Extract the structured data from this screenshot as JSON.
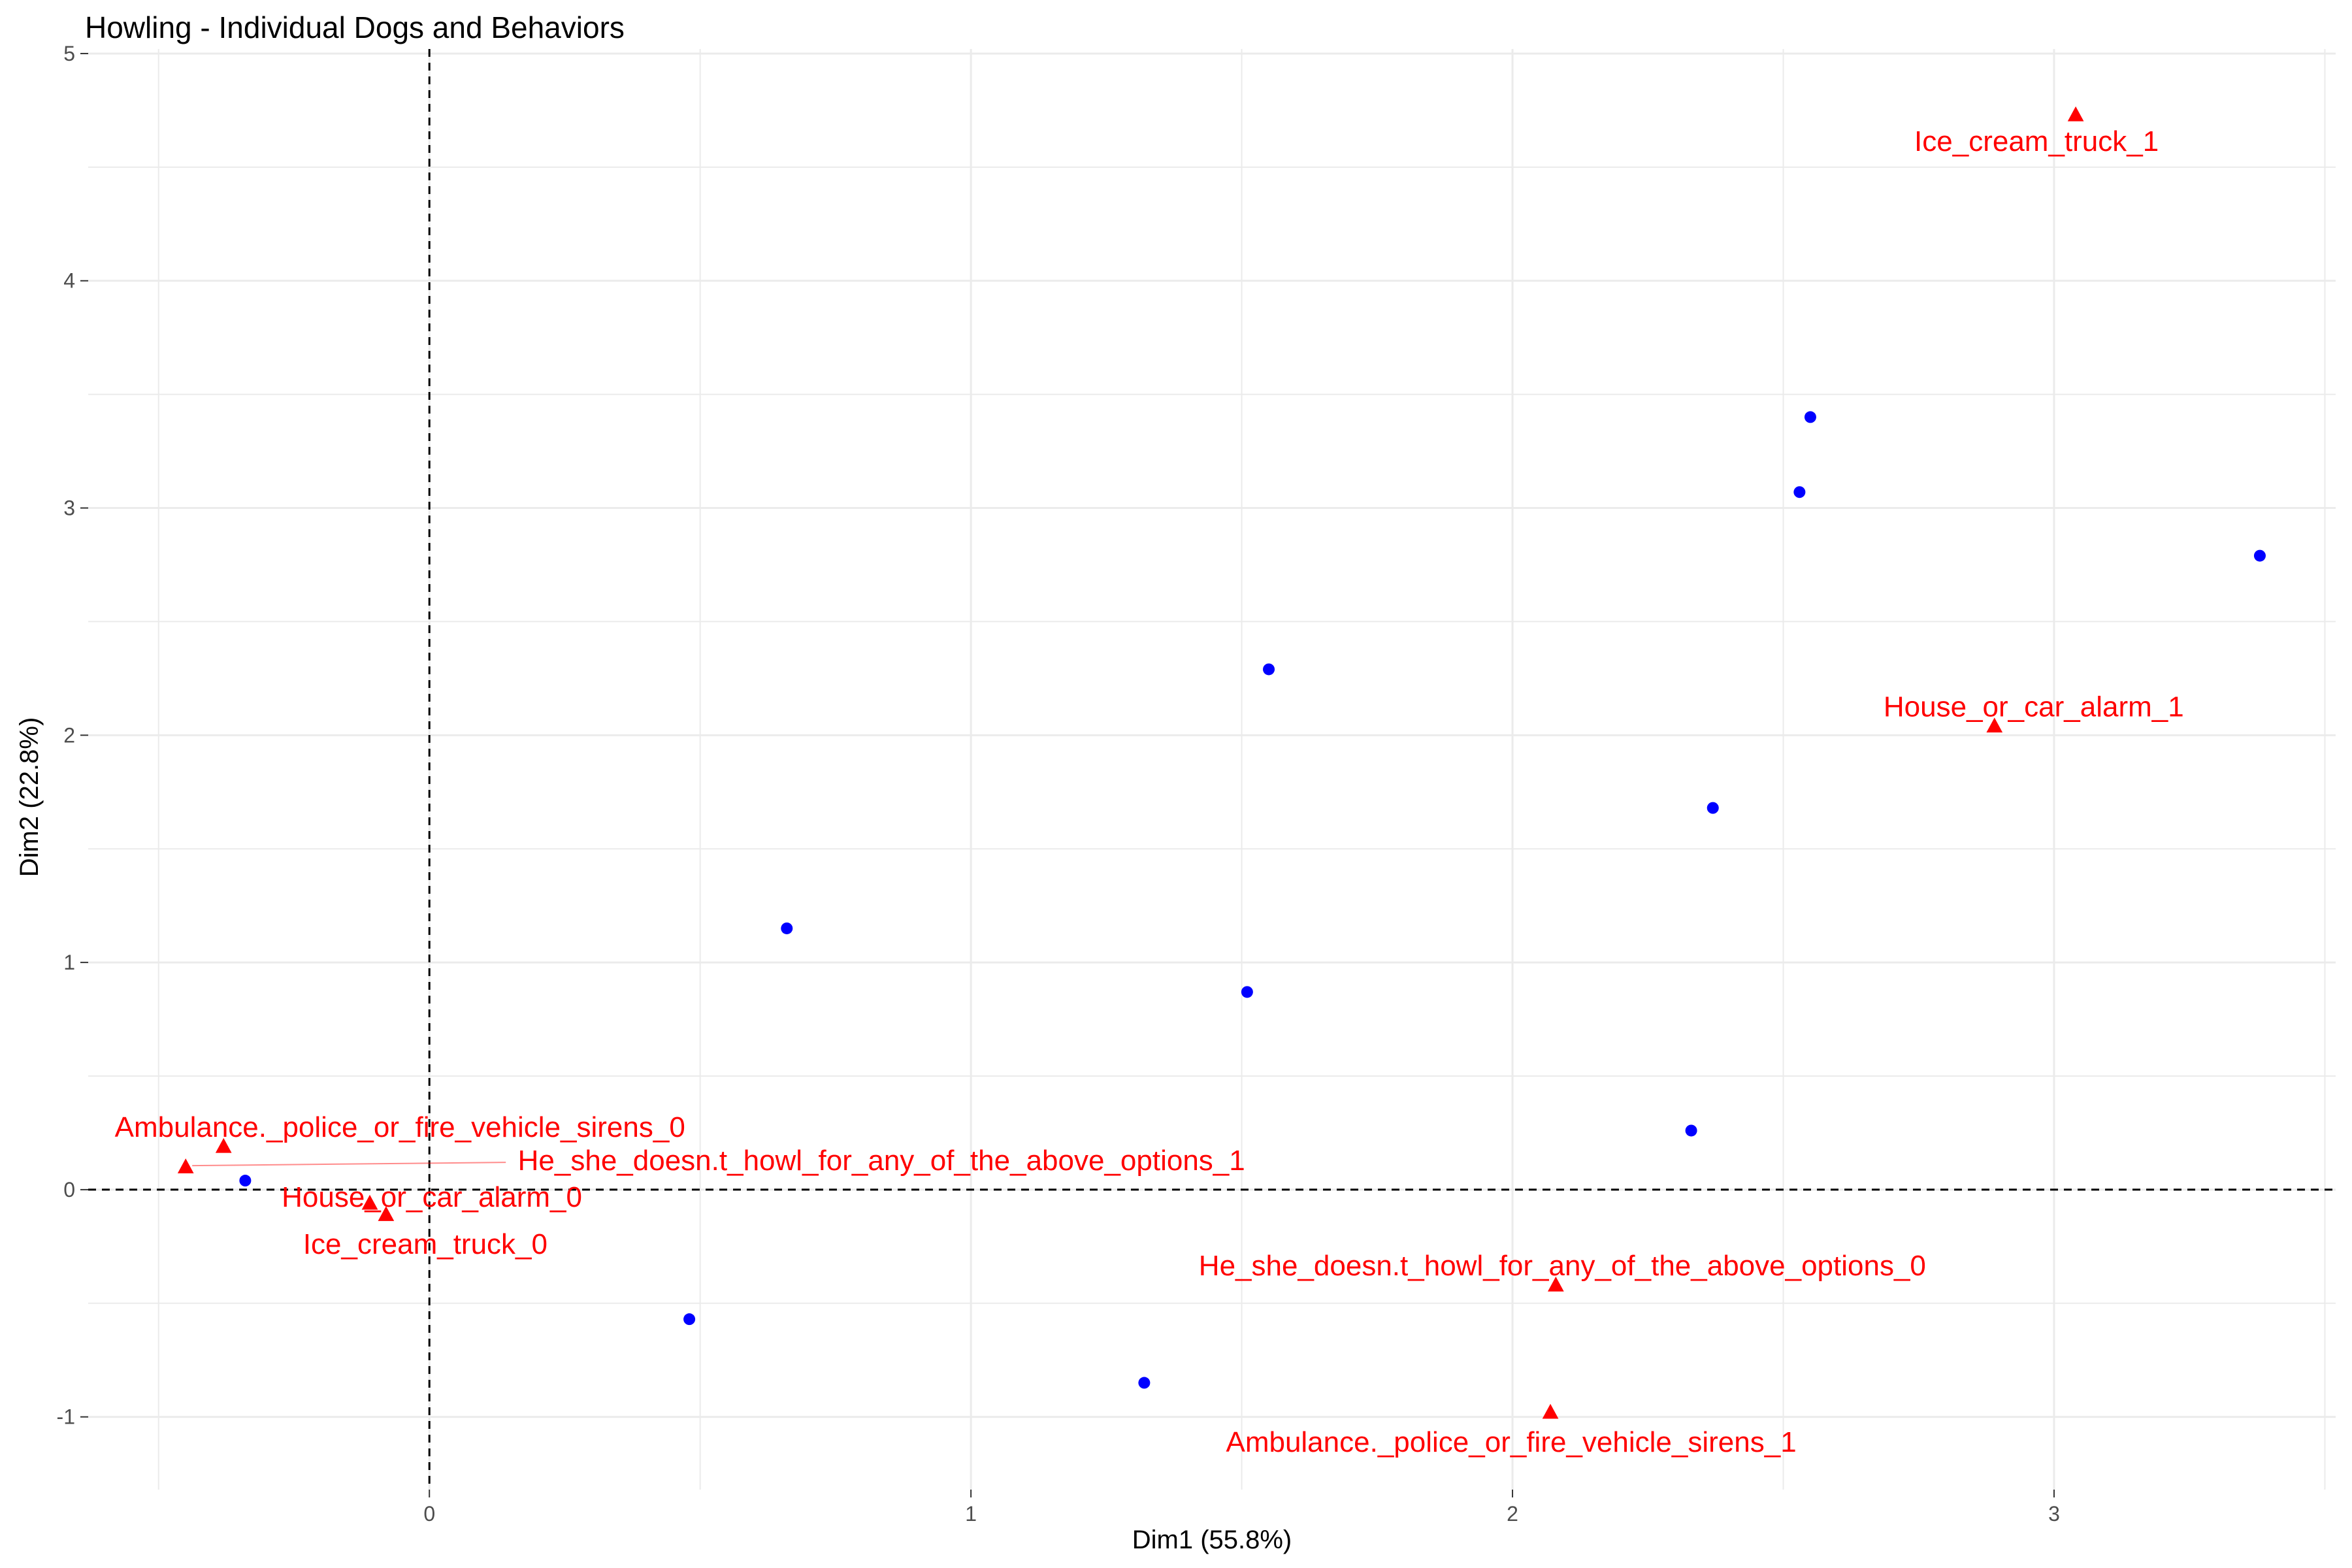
{
  "chart_data": {
    "type": "scatter",
    "title": "Howling - Individual Dogs and Behaviors",
    "xlabel": "Dim1 (55.8%)",
    "ylabel": "Dim2 (22.8%)",
    "xlim": [
      -0.63,
      3.52
    ],
    "ylim": [
      -1.32,
      5.02
    ],
    "x_ticks": [
      0,
      1,
      2,
      3
    ],
    "y_ticks": [
      -1,
      0,
      1,
      2,
      3,
      4,
      5
    ],
    "grid": true,
    "reference_lines": {
      "x": 0,
      "y": 0,
      "style": "dashed"
    },
    "colors": {
      "individuals": "#0000ff",
      "categories": "#ff0000",
      "grid": "#ebebeb",
      "text": "#000000",
      "tick_text": "#4d4d4d"
    },
    "individuals": [
      {
        "x": -0.34,
        "y": 0.04
      },
      {
        "x": 0.48,
        "y": -0.57
      },
      {
        "x": 0.66,
        "y": 1.15
      },
      {
        "x": 1.32,
        "y": -0.85
      },
      {
        "x": 1.51,
        "y": 0.87
      },
      {
        "x": 1.55,
        "y": 2.29
      },
      {
        "x": 2.33,
        "y": 0.26
      },
      {
        "x": 2.37,
        "y": 1.68
      },
      {
        "x": 2.53,
        "y": 3.07
      },
      {
        "x": 2.55,
        "y": 3.4
      },
      {
        "x": 3.38,
        "y": 2.79
      }
    ],
    "categories": [
      {
        "label": "Ice_cream_truck_1",
        "x": 3.04,
        "y": 4.73
      },
      {
        "label": "House_or_car_alarm_1",
        "x": 2.89,
        "y": 2.04
      },
      {
        "label": "He_she_doesn.t_howl_for_any_of_the_above_options_0",
        "x": 2.08,
        "y": -0.42
      },
      {
        "label": "Ambulance._police_or_fire_vehicle_sirens_1",
        "x": 2.07,
        "y": -0.98
      },
      {
        "label": "Ambulance._police_or_fire_vehicle_sirens_0",
        "x": -0.38,
        "y": 0.19
      },
      {
        "label": "He_she_doesn.t_howl_for_any_of_the_above_options_1",
        "x": -0.45,
        "y": 0.1
      },
      {
        "label": "House_or_car_alarm_0",
        "x": -0.11,
        "y": -0.06
      },
      {
        "label": "Ice_cream_truck_0",
        "x": -0.08,
        "y": -0.11
      }
    ]
  }
}
